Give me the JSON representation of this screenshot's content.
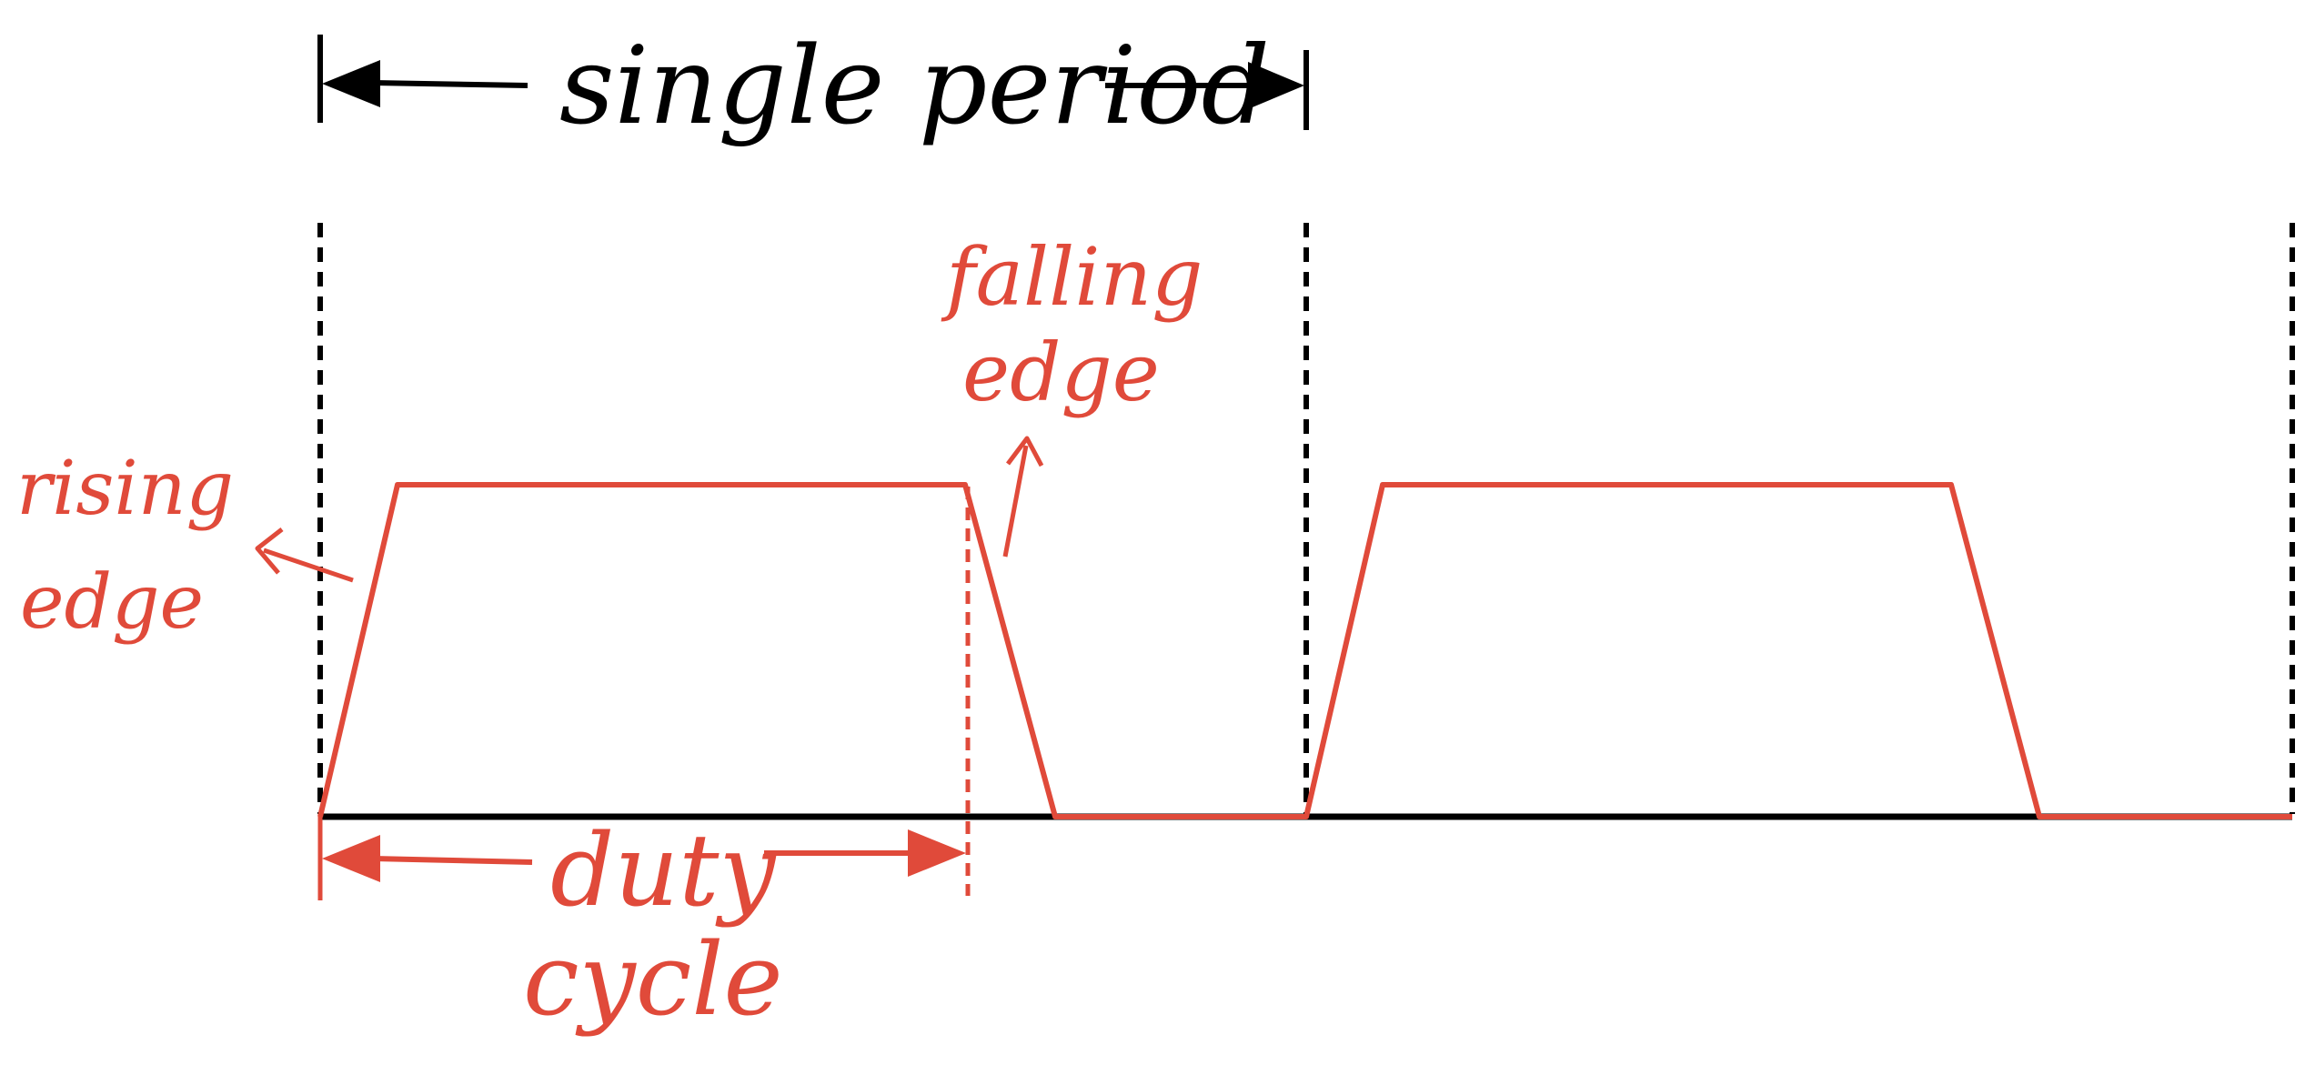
{
  "labels": {
    "single_period": "single period",
    "falling_edge_line1": "falling",
    "falling_edge_line2": "edge",
    "rising_edge_line1": "rising",
    "rising_edge_line2": "edge",
    "duty_cycle_line1": "duty",
    "duty_cycle_line2": "cycle"
  },
  "colors": {
    "waveform": "#e04a3a",
    "annotation": "#000000",
    "background": "#ffffff"
  },
  "diagram": {
    "type": "trapezoidal-pwm-waveform",
    "pulses": 2,
    "icons": [
      "arrow-left-icon",
      "arrow-right-icon"
    ]
  }
}
